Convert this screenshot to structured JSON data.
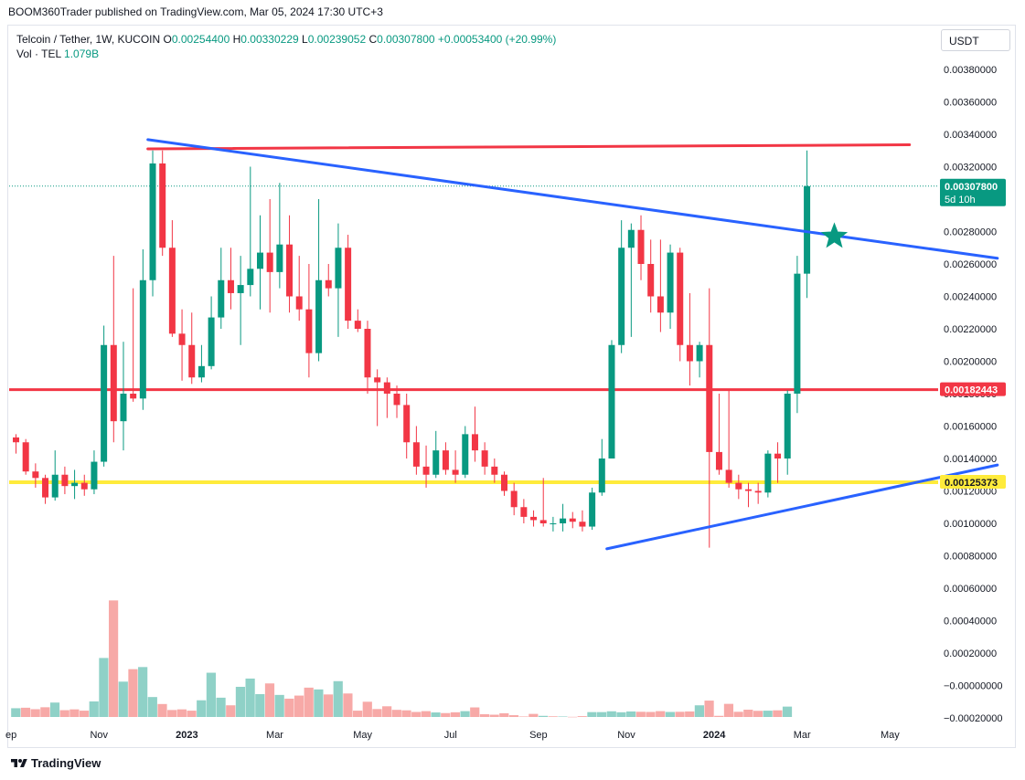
{
  "header": {
    "published_text": "BOOM360Trader published on TradingView.com, Mar 05, 2024 17:30 UTC+3"
  },
  "legend": {
    "symbol": "Telcoin / Tether, 1W, KUCOIN",
    "open_label": "O",
    "open": "0.00254400",
    "high_label": "H",
    "high": "0.00330229",
    "low_label": "L",
    "low": "0.00239052",
    "close_label": "C",
    "close": "0.00307800",
    "change": "+0.00053400 (+20.99%)",
    "vol_label": "Vol · TEL",
    "vol_value": "1.079B"
  },
  "currency_button": "USDT",
  "footer": {
    "brand": "TradingView"
  },
  "colors": {
    "up": "#089981",
    "down": "#f23645",
    "up_vol": "#8fd1c7",
    "down_vol": "#f7a9a7",
    "trend_blue": "#2962ff",
    "resistance_red": "#f23645",
    "support_yellow": "#ffeb3b"
  },
  "chart_data": {
    "type": "candlestick",
    "interval": "1W",
    "ylim": [
      -0.0002,
      0.004
    ],
    "y_ticks": [
      "0.00380000",
      "0.00360000",
      "0.00340000",
      "0.00320000",
      "0.00300000",
      "0.00280000",
      "0.00260000",
      "0.00240000",
      "0.00220000",
      "0.00200000",
      "0.00180000",
      "0.00160000",
      "0.00140000",
      "0.00120000",
      "0.00100000",
      "0.00080000",
      "0.00060000",
      "0.00040000",
      "0.00020000",
      "−0.00000000",
      "−0.00020000"
    ],
    "x_ticks": [
      {
        "label": "ep",
        "bold": false,
        "week": -0.5
      },
      {
        "label": "Nov",
        "bold": false,
        "week": 8.5
      },
      {
        "label": "2023",
        "bold": true,
        "week": 17.5
      },
      {
        "label": "Mar",
        "bold": false,
        "week": 26.5
      },
      {
        "label": "May",
        "bold": false,
        "week": 35.5
      },
      {
        "label": "Jul",
        "bold": false,
        "week": 44.5
      },
      {
        "label": "Sep",
        "bold": false,
        "week": 53.5
      },
      {
        "label": "Nov",
        "bold": false,
        "week": 62.5
      },
      {
        "label": "2024",
        "bold": true,
        "week": 71.5
      },
      {
        "label": "Mar",
        "bold": false,
        "week": 80.5
      },
      {
        "label": "May",
        "bold": false,
        "week": 89.5
      }
    ],
    "candles": [
      [
        0.00153,
        0.00155,
        0.00143,
        0.0015
      ],
      [
        0.0015,
        0.00152,
        0.0013,
        0.00132
      ],
      [
        0.00132,
        0.00137,
        0.00122,
        0.00128
      ],
      [
        0.00128,
        0.0013,
        0.00112,
        0.00116
      ],
      [
        0.00116,
        0.00145,
        0.00114,
        0.0013
      ],
      [
        0.0013,
        0.00135,
        0.00118,
        0.00123
      ],
      [
        0.00123,
        0.00133,
        0.00115,
        0.00125
      ],
      [
        0.00125,
        0.0013,
        0.00117,
        0.00121
      ],
      [
        0.00121,
        0.00145,
        0.00118,
        0.00138
      ],
      [
        0.00138,
        0.00222,
        0.00135,
        0.0021
      ],
      [
        0.0021,
        0.00265,
        0.0015,
        0.00163
      ],
      [
        0.00163,
        0.00212,
        0.00145,
        0.0018
      ],
      [
        0.0018,
        0.00245,
        0.00175,
        0.00177
      ],
      [
        0.00177,
        0.00269,
        0.0017,
        0.0025
      ],
      [
        0.0025,
        0.0033,
        0.0024,
        0.00322
      ],
      [
        0.00322,
        0.0033,
        0.00265,
        0.0027
      ],
      [
        0.0027,
        0.00287,
        0.00215,
        0.00217
      ],
      [
        0.00217,
        0.00232,
        0.00188,
        0.0021
      ],
      [
        0.0021,
        0.0023,
        0.00186,
        0.0019
      ],
      [
        0.0019,
        0.0021,
        0.00187,
        0.00197
      ],
      [
        0.00197,
        0.0024,
        0.00195,
        0.00227
      ],
      [
        0.00227,
        0.0027,
        0.0022,
        0.0025
      ],
      [
        0.0025,
        0.0027,
        0.00232,
        0.00242
      ],
      [
        0.00242,
        0.00265,
        0.0021,
        0.00247
      ],
      [
        0.00247,
        0.0032,
        0.0024,
        0.00257
      ],
      [
        0.00257,
        0.0029,
        0.00232,
        0.00267
      ],
      [
        0.00267,
        0.003,
        0.0023,
        0.00255
      ],
      [
        0.00255,
        0.0031,
        0.00245,
        0.00272
      ],
      [
        0.00272,
        0.0029,
        0.0023,
        0.0024
      ],
      [
        0.0024,
        0.00265,
        0.00225,
        0.00232
      ],
      [
        0.00232,
        0.0026,
        0.0019,
        0.00205
      ],
      [
        0.00205,
        0.003,
        0.002,
        0.0025
      ],
      [
        0.0025,
        0.0026,
        0.0024,
        0.00245
      ],
      [
        0.00245,
        0.00285,
        0.00215,
        0.0027
      ],
      [
        0.0027,
        0.00278,
        0.0022,
        0.00225
      ],
      [
        0.00225,
        0.00232,
        0.00218,
        0.0022
      ],
      [
        0.0022,
        0.00225,
        0.0018,
        0.0019
      ],
      [
        0.0019,
        0.00195,
        0.0016,
        0.00187
      ],
      [
        0.00187,
        0.0019,
        0.00165,
        0.0018
      ],
      [
        0.0018,
        0.00185,
        0.00165,
        0.00173
      ],
      [
        0.00173,
        0.0018,
        0.0014,
        0.0015
      ],
      [
        0.0015,
        0.0016,
        0.0013,
        0.00135
      ],
      [
        0.00135,
        0.00148,
        0.00122,
        0.0013
      ],
      [
        0.0013,
        0.00157,
        0.00128,
        0.00145
      ],
      [
        0.00145,
        0.0015,
        0.0013,
        0.00133
      ],
      [
        0.00133,
        0.00145,
        0.00125,
        0.0013
      ],
      [
        0.0013,
        0.0016,
        0.00128,
        0.00155
      ],
      [
        0.00155,
        0.00172,
        0.00138,
        0.00145
      ],
      [
        0.00145,
        0.0015,
        0.0013,
        0.00135
      ],
      [
        0.00135,
        0.0014,
        0.00125,
        0.0013
      ],
      [
        0.0013,
        0.00132,
        0.00117,
        0.0012
      ],
      [
        0.0012,
        0.00125,
        0.00105,
        0.0011
      ],
      [
        0.0011,
        0.00115,
        0.001,
        0.00104
      ],
      [
        0.00104,
        0.00108,
        0.00098,
        0.00102
      ],
      [
        0.00102,
        0.00128,
        0.00098,
        0.001
      ],
      [
        0.001,
        0.00104,
        0.00095,
        0.001
      ],
      [
        0.001,
        0.00112,
        0.00095,
        0.00103
      ],
      [
        0.00103,
        0.00107,
        0.00097,
        0.00101
      ],
      [
        0.00101,
        0.00108,
        0.00095,
        0.00098
      ],
      [
        0.00098,
        0.00122,
        0.00096,
        0.00119
      ],
      [
        0.00119,
        0.00152,
        0.00117,
        0.0014
      ],
      [
        0.0014,
        0.00213,
        0.0014,
        0.0021
      ],
      [
        0.0021,
        0.00287,
        0.00205,
        0.0027
      ],
      [
        0.0027,
        0.00285,
        0.00215,
        0.00281
      ],
      [
        0.00281,
        0.0029,
        0.0025,
        0.0026
      ],
      [
        0.0026,
        0.00275,
        0.0023,
        0.0024
      ],
      [
        0.0024,
        0.00275,
        0.00218,
        0.0023
      ],
      [
        0.0023,
        0.00272,
        0.0022,
        0.00267
      ],
      [
        0.00267,
        0.0027,
        0.002,
        0.0021
      ],
      [
        0.0021,
        0.00242,
        0.00185,
        0.002
      ],
      [
        0.002,
        0.00212,
        0.0019,
        0.0021
      ],
      [
        0.0021,
        0.00245,
        0.00085,
        0.00144
      ],
      [
        0.00144,
        0.0018,
        0.0013,
        0.00133
      ],
      [
        0.00133,
        0.00182,
        0.00122,
        0.00125
      ],
      [
        0.00125,
        0.0013,
        0.00115,
        0.00121
      ],
      [
        0.00121,
        0.00125,
        0.0011,
        0.0012
      ],
      [
        0.0012,
        0.00125,
        0.00112,
        0.00119
      ],
      [
        0.00119,
        0.00145,
        0.00116,
        0.00143
      ],
      [
        0.00143,
        0.0015,
        0.00125,
        0.0014
      ],
      [
        0.0014,
        0.00182,
        0.0013,
        0.0018
      ],
      [
        0.0018,
        0.00265,
        0.00168,
        0.00254
      ],
      [
        0.00254,
        0.0033,
        0.00239,
        0.00308
      ]
    ],
    "volume_ylim": [
      -0.0002,
      0.004
    ],
    "volume": [
      5.4e-05,
      5.7e-05,
      4.8e-05,
      6e-05,
      8.9e-05,
      4.2e-05,
      4.7e-05,
      3.9e-05,
      9.6e-05,
      0.000364,
      0.000719,
      0.000218,
      0.000295,
      0.000308,
      0.000123,
      8e-05,
      4.3e-05,
      4.7e-05,
      3.9e-05,
      0.000103,
      0.000273,
      0.000119,
      7.2e-05,
      0.000186,
      0.000237,
      0.000141,
      0.000207,
      0.000136,
      0.000113,
      0.000132,
      0.000181,
      0.00017,
      0.000139,
      0.000221,
      0.000145,
      3.9e-05,
      9.4e-05,
      4.9e-05,
      6.6e-05,
      4.4e-05,
      4.1e-05,
      3.1e-05,
      3.6e-05,
      2.8e-05,
      2.4e-05,
      2.9e-05,
      3.6e-05,
      5.9e-05,
      1.7e-05,
      1.4e-05,
      2.3e-05,
      1.1e-05,
      3e-06,
      1.9e-05,
      7e-06,
      4e-06,
      3e-06,
      1e-06,
      5e-06,
      3e-05,
      3e-05,
      3.5e-05,
      2.9e-05,
      3.4e-05,
      3.2e-05,
      3.1e-05,
      3.6e-05,
      3.1e-05,
      3.2e-05,
      3.4e-05,
      7.2e-05,
      0.000101,
      7e-06,
      8.1e-05,
      3.2e-05,
      4.5e-05,
      3.8e-05,
      3.9e-05,
      4.1e-05,
      6.4e-05,
      0.0,
      0.0
    ],
    "volume_up": [
      true,
      false,
      false,
      false,
      true,
      false,
      false,
      false,
      true,
      true,
      false,
      true,
      false,
      true,
      true,
      false,
      false,
      false,
      false,
      true,
      true,
      true,
      false,
      true,
      true,
      true,
      false,
      true,
      false,
      false,
      false,
      true,
      false,
      true,
      false,
      false,
      false,
      false,
      false,
      false,
      false,
      false,
      false,
      true,
      false,
      false,
      true,
      false,
      false,
      false,
      false,
      false,
      false,
      false,
      true,
      false,
      true,
      false,
      false,
      true,
      true,
      true,
      true,
      true,
      false,
      false,
      false,
      true,
      false,
      false,
      true,
      false,
      false,
      false,
      false,
      false,
      false,
      true,
      false,
      true,
      true,
      true
    ],
    "annotations": {
      "current_price_label": "0.00307800",
      "countdown_label": "5d 10h",
      "level_red_label": "0.00182443",
      "level_red_value": 0.00182443,
      "level_yellow_label": "0.00125373",
      "level_yellow_value": 0.00125373,
      "resistance_red": {
        "from": [
          13.5,
          0.00331
        ],
        "to": [
          91.5,
          0.003335
        ]
      },
      "down_trend_blue": {
        "from": [
          13.5,
          0.003367
        ],
        "to": [
          100.5,
          0.002635
        ]
      },
      "up_trend_blue": {
        "from": [
          60.5,
          0.000843
        ],
        "to": [
          100.5,
          0.00136
        ]
      },
      "star": {
        "week": 83.8,
        "value": 0.00277
      }
    }
  }
}
